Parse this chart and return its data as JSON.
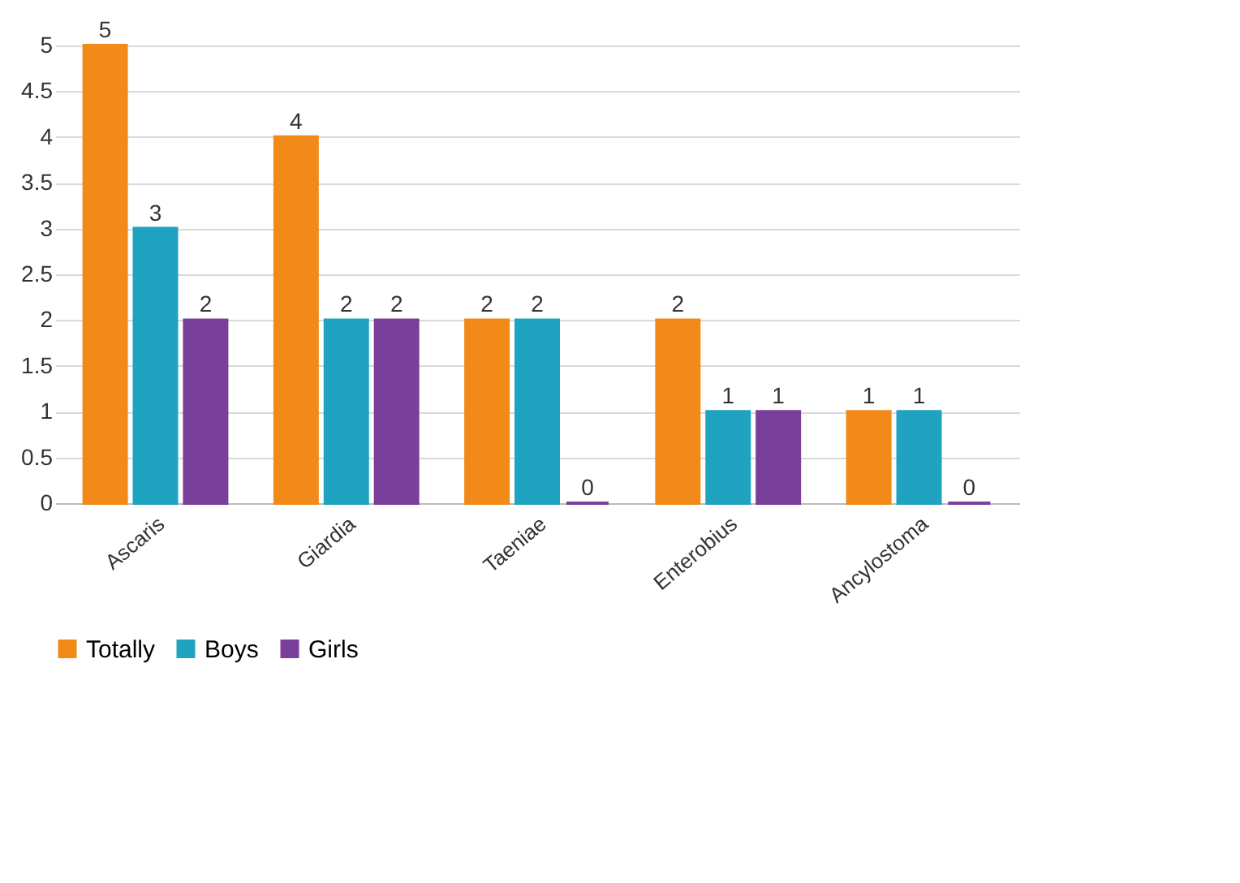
{
  "chart_data": {
    "type": "bar",
    "categories": [
      "Ascaris",
      "Giardia",
      "Taeniae",
      "Enterobius",
      "Ancylostoma"
    ],
    "series": [
      {
        "name": "Totally",
        "color": "#f28a1a",
        "values": [
          5,
          4,
          2,
          2,
          1
        ]
      },
      {
        "name": "Boys",
        "color": "#1fa3c0",
        "values": [
          3,
          2,
          2,
          1,
          1
        ]
      },
      {
        "name": "Girls",
        "color": "#7a3f9a",
        "values": [
          2,
          2,
          0,
          1,
          0
        ]
      }
    ],
    "ylim": [
      0,
      5
    ],
    "yticks": [
      0,
      0.5,
      1,
      1.5,
      2,
      2.5,
      3,
      3.5,
      4,
      4.5,
      5
    ],
    "grid": "y",
    "legend": "bottom",
    "data_labels": true
  }
}
